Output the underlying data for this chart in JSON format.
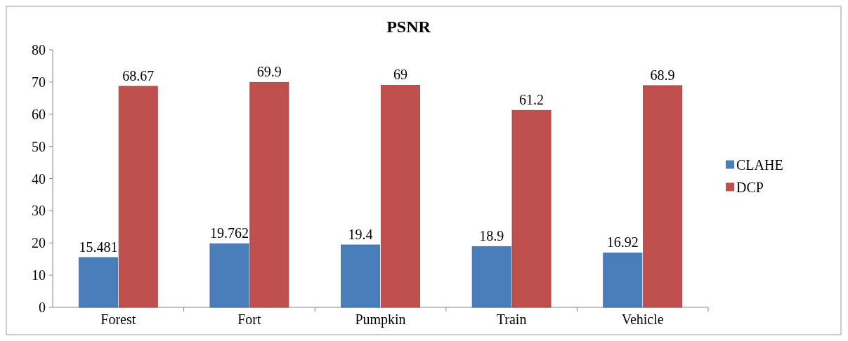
{
  "chart_data": {
    "type": "bar",
    "title": "PSNR",
    "categories": [
      "Forest",
      "Fort",
      "Pumpkin",
      "Train",
      "Vehicle"
    ],
    "series": [
      {
        "name": "CLAHE",
        "color": "#4a7ebb",
        "values": [
          15.481,
          19.762,
          19.4,
          18.9,
          16.92
        ]
      },
      {
        "name": "DCP",
        "color": "#c0504d",
        "values": [
          68.67,
          69.9,
          69,
          61.2,
          68.9
        ]
      }
    ],
    "ylim": [
      0,
      80
    ],
    "yticks": [
      0,
      10,
      20,
      30,
      40,
      50,
      60,
      70,
      80
    ],
    "grid": false,
    "legend": "right",
    "data_labels": true
  }
}
